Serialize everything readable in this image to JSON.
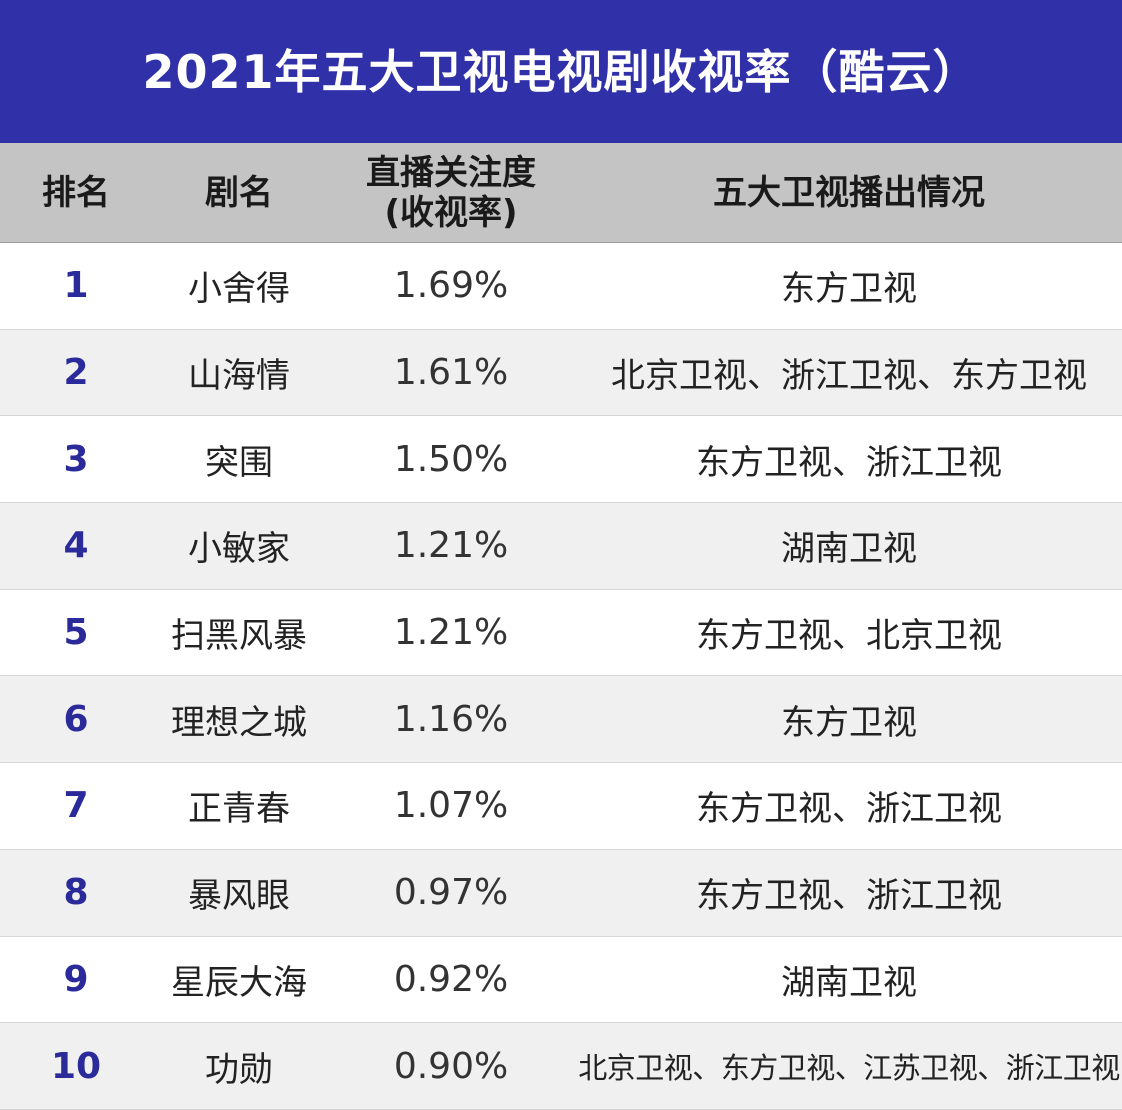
{
  "title": "2021年五大卫视电视剧收视率（酷云）",
  "header": {
    "rank": "排名",
    "name": "剧名",
    "rate_line1": "直播关注度",
    "rate_line2": "(收视率)",
    "channels": "五大卫视播出情况"
  },
  "rows": [
    {
      "rank": "1",
      "name": "小舍得",
      "rate": "1.69%",
      "channels": "东方卫视"
    },
    {
      "rank": "2",
      "name": "山海情",
      "rate": "1.61%",
      "channels": "北京卫视、浙江卫视、东方卫视"
    },
    {
      "rank": "3",
      "name": "突围",
      "rate": "1.50%",
      "channels": "东方卫视、浙江卫视"
    },
    {
      "rank": "4",
      "name": "小敏家",
      "rate": "1.21%",
      "channels": "湖南卫视"
    },
    {
      "rank": "5",
      "name": "扫黑风暴",
      "rate": "1.21%",
      "channels": "东方卫视、北京卫视"
    },
    {
      "rank": "6",
      "name": "理想之城",
      "rate": "1.16%",
      "channels": "东方卫视"
    },
    {
      "rank": "7",
      "name": "正青春",
      "rate": "1.07%",
      "channels": "东方卫视、浙江卫视"
    },
    {
      "rank": "8",
      "name": "暴风眼",
      "rate": "0.97%",
      "channels": "东方卫视、浙江卫视"
    },
    {
      "rank": "9",
      "name": "星辰大海",
      "rate": "0.92%",
      "channels": "湖南卫视"
    },
    {
      "rank": "10",
      "name": "功勋",
      "rate": "0.90%",
      "channels": "北京卫视、东方卫视、江苏卫视、浙江卫视"
    }
  ],
  "colors": {
    "title_bg": "#3030a8",
    "header_bg": "#c4c4c4",
    "rank_text": "#2a2a9a"
  }
}
